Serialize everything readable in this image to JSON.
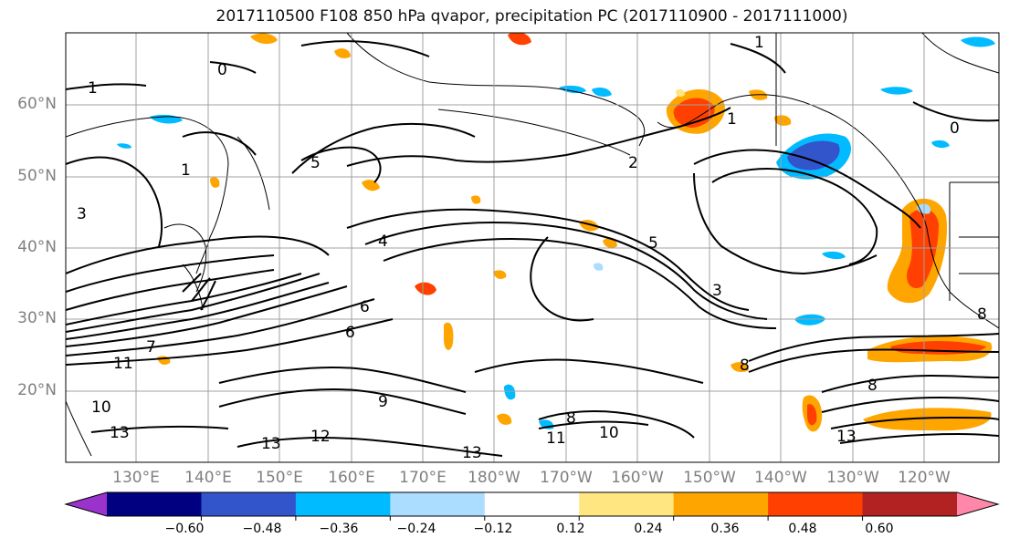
{
  "title": "2017110500 F108 850 hPa qvapor, precipitation PC (2017110900 - 2017111000)",
  "lat_labels": [
    "60°N",
    "50°N",
    "40°N",
    "30°N",
    "20°N"
  ],
  "lon_labels": [
    "130°E",
    "140°E",
    "150°E",
    "160°E",
    "170°E",
    "180°W",
    "170°W",
    "160°W",
    "150°W",
    "140°W",
    "130°W",
    "120°W"
  ],
  "colorbar": {
    "colors": [
      "#9933cc",
      "#000080",
      "#3355cc",
      "#00bbff",
      "#aaddff",
      "#ffffff",
      "#ffe680",
      "#ffa500",
      "#ff4000",
      "#b22222",
      "#ff88aa"
    ],
    "tick_labels": [
      "−0.60",
      "−0.48",
      "−0.36",
      "−0.24",
      "−0.12",
      "0.12",
      "0.24",
      "0.36",
      "0.48",
      "0.60"
    ]
  },
  "contour_labels": [
    "1",
    "0",
    "1",
    "1",
    "3",
    "5",
    "2",
    "1",
    "0",
    "4",
    "5",
    "3",
    "6",
    "6",
    "7",
    "8",
    "9",
    "10",
    "11",
    "13",
    "13",
    "12",
    "13",
    "11",
    "10",
    "8",
    "8",
    "13",
    "8"
  ]
}
